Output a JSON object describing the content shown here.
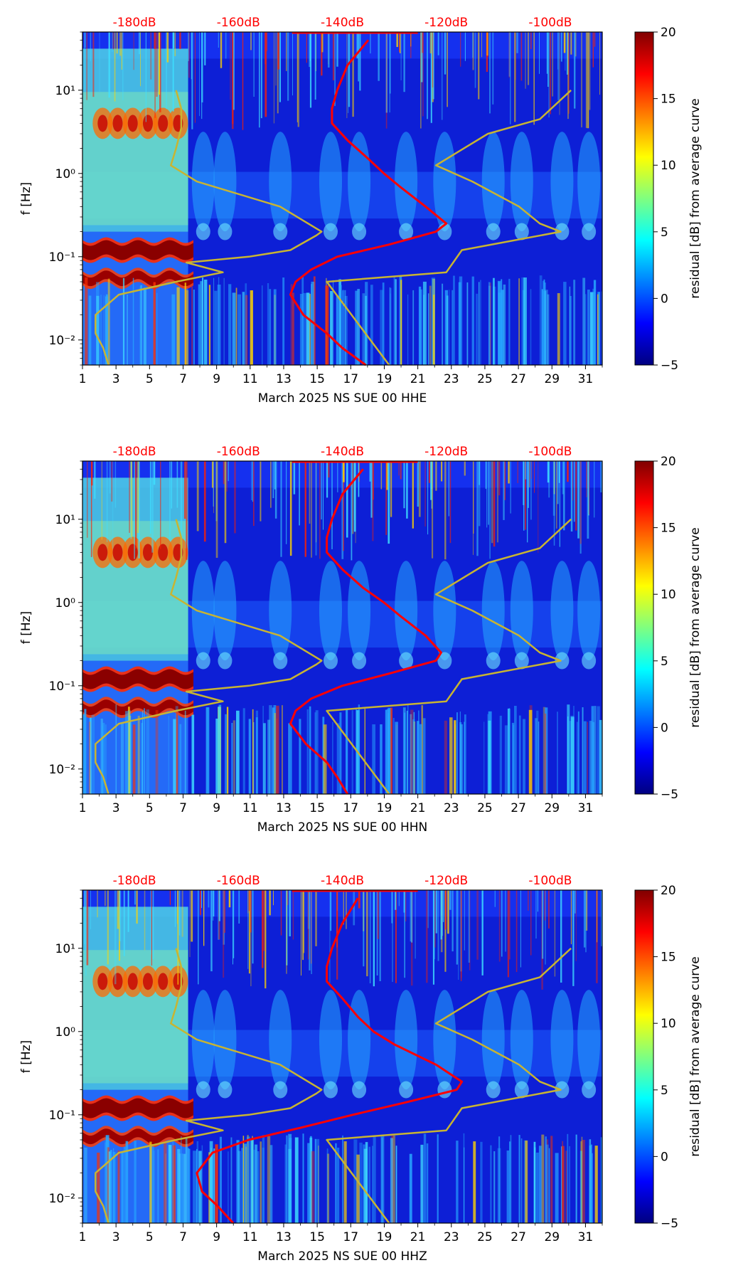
{
  "chart_data": [
    {
      "type": "heatmap",
      "xlabel": "March 2025 NS SUE 00 HHE",
      "ylabel": "f [Hz]",
      "colorbar_label": "residual [dB] from average curve",
      "colorbar_ticks": [
        "20",
        "15",
        "10",
        "5",
        "0",
        "−5"
      ],
      "db_axis_ticks": [
        "-180dB",
        "-160dB",
        "-140dB",
        "-120dB",
        "-100dB"
      ],
      "x_ticks": [
        "1",
        "3",
        "5",
        "7",
        "9",
        "11",
        "13",
        "15",
        "17",
        "19",
        "21",
        "23",
        "25",
        "27",
        "29",
        "31"
      ],
      "y_ticks": [
        "10¹",
        "10⁰",
        "10⁻¹",
        "10⁻²"
      ],
      "xlim": [
        1,
        32
      ],
      "ylim_hz": [
        0.005,
        50
      ],
      "clim_db": [
        -5,
        20
      ],
      "db_axis_range": [
        -190,
        -90
      ],
      "series": [
        {
          "name": "average PSD curve",
          "color": "#ff0000",
          "points": [
            [
              0.005,
              -135.5
            ],
            [
              0.008,
              -140
            ],
            [
              0.012,
              -143
            ],
            [
              0.02,
              -147.5
            ],
            [
              0.035,
              -150
            ],
            [
              0.05,
              -149
            ],
            [
              0.07,
              -146
            ],
            [
              0.1,
              -141
            ],
            [
              0.14,
              -131
            ],
            [
              0.2,
              -122
            ],
            [
              0.25,
              -120
            ],
            [
              0.4,
              -124
            ],
            [
              0.7,
              -129
            ],
            [
              1.0,
              -132
            ],
            [
              1.5,
              -135
            ],
            [
              2.5,
              -139
            ],
            [
              4,
              -142
            ],
            [
              6,
              -142
            ],
            [
              10,
              -141
            ],
            [
              20,
              -139
            ],
            [
              40,
              -135
            ]
          ]
        },
        {
          "name": "noise model curve",
          "color": "#c8b432",
          "points": [
            [
              0.005,
              -185
            ],
            [
              0.008,
              -186
            ],
            [
              0.012,
              -187.5
            ],
            [
              0.02,
              -187.5
            ],
            [
              0.035,
              -183
            ],
            [
              0.05,
              -172
            ],
            [
              0.065,
              -163
            ],
            [
              0.085,
              -170
            ],
            [
              0.1,
              -158
            ],
            [
              0.12,
              -150
            ],
            [
              0.18,
              -145
            ],
            [
              0.2,
              -144
            ],
            [
              0.4,
              -152
            ],
            [
              0.8,
              -168
            ],
            [
              1.25,
              -173
            ],
            [
              2,
              -172
            ],
            [
              3.5,
              -171
            ],
            [
              6,
              -171
            ],
            [
              10,
              -172
            ]
          ]
        },
        {
          "name": "high noise model curve",
          "color": "#c8b432",
          "points": [
            [
              0.005,
              -131
            ],
            [
              0.05,
              -143
            ],
            [
              0.065,
              -120
            ],
            [
              0.12,
              -117
            ],
            [
              0.2,
              -98
            ],
            [
              0.25,
              -102
            ],
            [
              0.4,
              -106
            ],
            [
              0.8,
              -115
            ],
            [
              1.25,
              -122
            ],
            [
              3,
              -112
            ],
            [
              4.5,
              -102
            ],
            [
              10,
              -96
            ]
          ]
        }
      ]
    },
    {
      "type": "heatmap",
      "xlabel": "March 2025 NS SUE 00 HHN",
      "ylabel": "f [Hz]",
      "colorbar_label": "residual [dB] from average curve",
      "colorbar_ticks": [
        "20",
        "15",
        "10",
        "5",
        "0",
        "−5"
      ],
      "db_axis_ticks": [
        "-180dB",
        "-160dB",
        "-140dB",
        "-120dB",
        "-100dB"
      ],
      "x_ticks": [
        "1",
        "3",
        "5",
        "7",
        "9",
        "11",
        "13",
        "15",
        "17",
        "19",
        "21",
        "23",
        "25",
        "27",
        "29",
        "31"
      ],
      "y_ticks": [
        "10¹",
        "10⁰",
        "10⁻¹",
        "10⁻²"
      ],
      "xlim": [
        1,
        32
      ],
      "ylim_hz": [
        0.005,
        50
      ],
      "clim_db": [
        -5,
        20
      ],
      "db_axis_range": [
        -190,
        -90
      ],
      "series": [
        {
          "name": "average PSD curve",
          "color": "#ff0000",
          "points": [
            [
              0.005,
              -139
            ],
            [
              0.008,
              -141
            ],
            [
              0.012,
              -143
            ],
            [
              0.02,
              -147
            ],
            [
              0.035,
              -150
            ],
            [
              0.05,
              -149
            ],
            [
              0.07,
              -146
            ],
            [
              0.1,
              -140
            ],
            [
              0.14,
              -131
            ],
            [
              0.2,
              -122
            ],
            [
              0.25,
              -121
            ],
            [
              0.4,
              -124
            ],
            [
              0.7,
              -129
            ],
            [
              1.0,
              -132
            ],
            [
              1.5,
              -136
            ],
            [
              2.5,
              -140
            ],
            [
              4,
              -143
            ],
            [
              6,
              -143
            ],
            [
              10,
              -142
            ],
            [
              20,
              -140
            ],
            [
              40,
              -136
            ]
          ]
        },
        {
          "name": "noise model curve",
          "color": "#c8b432",
          "points": [
            [
              0.005,
              -185
            ],
            [
              0.008,
              -186
            ],
            [
              0.012,
              -187.5
            ],
            [
              0.02,
              -187.5
            ],
            [
              0.035,
              -183
            ],
            [
              0.05,
              -172
            ],
            [
              0.065,
              -163
            ],
            [
              0.085,
              -170
            ],
            [
              0.1,
              -158
            ],
            [
              0.12,
              -150
            ],
            [
              0.18,
              -145
            ],
            [
              0.2,
              -144
            ],
            [
              0.4,
              -152
            ],
            [
              0.8,
              -168
            ],
            [
              1.25,
              -173
            ],
            [
              2,
              -172
            ],
            [
              3.5,
              -171
            ],
            [
              6,
              -171
            ],
            [
              10,
              -172
            ]
          ]
        },
        {
          "name": "high noise model curve",
          "color": "#c8b432",
          "points": [
            [
              0.005,
              -131
            ],
            [
              0.05,
              -143
            ],
            [
              0.065,
              -120
            ],
            [
              0.12,
              -117
            ],
            [
              0.2,
              -98
            ],
            [
              0.25,
              -102
            ],
            [
              0.4,
              -106
            ],
            [
              0.8,
              -115
            ],
            [
              1.25,
              -122
            ],
            [
              3,
              -112
            ],
            [
              4.5,
              -102
            ],
            [
              10,
              -96
            ]
          ]
        }
      ]
    },
    {
      "type": "heatmap",
      "xlabel": "March 2025 NS SUE 00 HHZ",
      "ylabel": "f [Hz]",
      "colorbar_label": "residual [dB] from average curve",
      "colorbar_ticks": [
        "20",
        "15",
        "10",
        "5",
        "0",
        "−5"
      ],
      "db_axis_ticks": [
        "-180dB",
        "-160dB",
        "-140dB",
        "-120dB",
        "-100dB"
      ],
      "x_ticks": [
        "1",
        "3",
        "5",
        "7",
        "9",
        "11",
        "13",
        "15",
        "17",
        "19",
        "21",
        "23",
        "25",
        "27",
        "29",
        "31"
      ],
      "y_ticks": [
        "10¹",
        "10⁰",
        "10⁻¹",
        "10⁻²"
      ],
      "xlim": [
        1,
        32
      ],
      "ylim_hz": [
        0.005,
        50
      ],
      "clim_db": [
        -5,
        20
      ],
      "db_axis_range": [
        -190,
        -90
      ],
      "series": [
        {
          "name": "average PSD curve",
          "color": "#ff0000",
          "points": [
            [
              0.005,
              -161
            ],
            [
              0.008,
              -164
            ],
            [
              0.012,
              -167
            ],
            [
              0.02,
              -168
            ],
            [
              0.035,
              -165
            ],
            [
              0.05,
              -158
            ],
            [
              0.07,
              -148
            ],
            [
              0.1,
              -138
            ],
            [
              0.14,
              -128
            ],
            [
              0.2,
              -118
            ],
            [
              0.25,
              -117
            ],
            [
              0.4,
              -122
            ],
            [
              0.7,
              -130
            ],
            [
              1.0,
              -134
            ],
            [
              1.5,
              -137
            ],
            [
              2.5,
              -140
            ],
            [
              4,
              -143
            ],
            [
              6,
              -143
            ],
            [
              10,
              -142
            ],
            [
              20,
              -140
            ],
            [
              40,
              -137
            ]
          ]
        },
        {
          "name": "noise model curve",
          "color": "#c8b432",
          "points": [
            [
              0.005,
              -185
            ],
            [
              0.008,
              -186
            ],
            [
              0.012,
              -187.5
            ],
            [
              0.02,
              -187.5
            ],
            [
              0.035,
              -183
            ],
            [
              0.05,
              -172
            ],
            [
              0.065,
              -163
            ],
            [
              0.085,
              -170
            ],
            [
              0.1,
              -158
            ],
            [
              0.12,
              -150
            ],
            [
              0.18,
              -145
            ],
            [
              0.2,
              -144
            ],
            [
              0.4,
              -152
            ],
            [
              0.8,
              -168
            ],
            [
              1.25,
              -173
            ],
            [
              2,
              -172
            ],
            [
              3.5,
              -171
            ],
            [
              6,
              -171
            ],
            [
              10,
              -172
            ]
          ]
        },
        {
          "name": "high noise model curve",
          "color": "#c8b432",
          "points": [
            [
              0.005,
              -131
            ],
            [
              0.05,
              -143
            ],
            [
              0.065,
              -120
            ],
            [
              0.12,
              -117
            ],
            [
              0.2,
              -98
            ],
            [
              0.25,
              -102
            ],
            [
              0.4,
              -106
            ],
            [
              0.8,
              -115
            ],
            [
              1.25,
              -122
            ],
            [
              3,
              -112
            ],
            [
              4.5,
              -102
            ],
            [
              10,
              -96
            ]
          ]
        }
      ]
    }
  ]
}
